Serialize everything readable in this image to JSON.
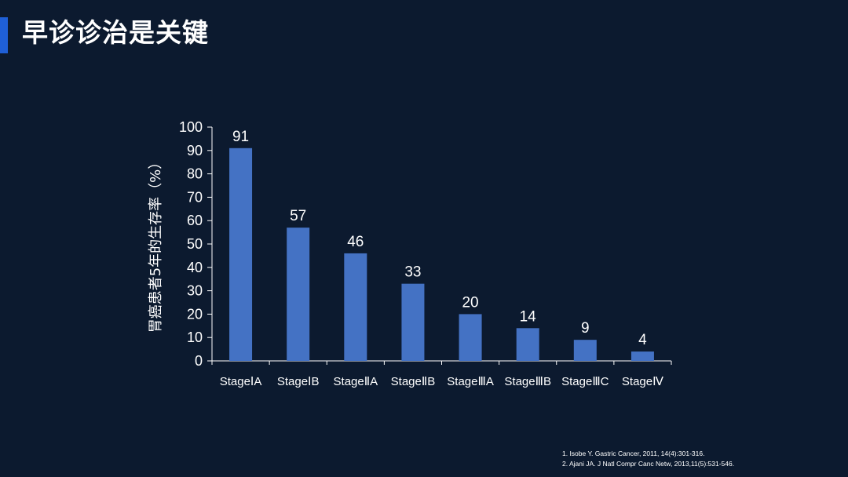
{
  "slide": {
    "title": "早诊诊治是关键",
    "accent_color": "#1f5fd6",
    "background_color": "#0c1a2f"
  },
  "chart_data": {
    "type": "bar",
    "categories": [
      "Stage I A",
      "Stage I B",
      "Stage II A",
      "Stage II B",
      "Stage III A",
      "Stage III B",
      "Stage III C",
      "Stage IV"
    ],
    "category_labels": [
      "StageⅠA",
      "StageⅠB",
      "StageⅡA",
      "StageⅡB",
      "StageⅢA",
      "StageⅢB",
      "StageⅢC",
      "StageⅣ"
    ],
    "values": [
      91,
      57,
      46,
      33,
      20,
      14,
      9,
      4
    ],
    "data_labels": [
      "91",
      "57",
      "46",
      "33",
      "20",
      "14",
      "9",
      "4"
    ],
    "ylabel": "胃癌患者5年的生存率（%）",
    "xlabel": "",
    "ylim": [
      0,
      100
    ],
    "yticks": [
      0,
      10,
      20,
      30,
      40,
      50,
      60,
      70,
      80,
      90,
      100
    ],
    "grid": false,
    "legend": "none",
    "bar_color": "#4472c4",
    "axis_color": "#ffffff"
  },
  "references": [
    "1. Isobe Y. Gastric Cancer, 2011, 14(4):301-316.",
    "2. Ajani JA. J Natl Compr Canc Netw, 2013,11(5):531-546."
  ]
}
